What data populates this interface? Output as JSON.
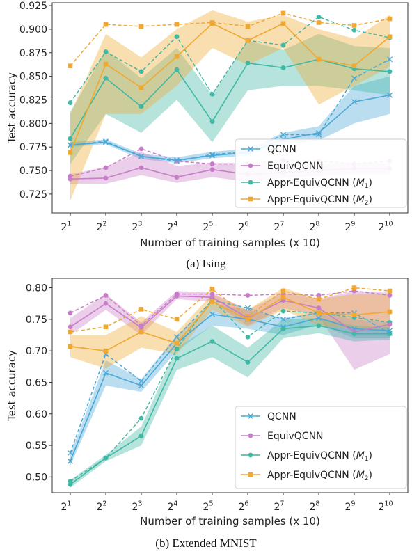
{
  "chart_data": [
    {
      "type": "line",
      "caption": "(a) Ising",
      "xlabel": "Number of training samples (x 10)",
      "ylabel": "Test accuracy",
      "x_ticks": [
        "2^1",
        "2^2",
        "2^3",
        "2^4",
        "2^5",
        "2^6",
        "2^7",
        "2^8",
        "2^9",
        "2^10"
      ],
      "y_ticks": [
        0.725,
        0.75,
        0.775,
        0.8,
        0.825,
        0.85,
        0.875,
        0.9,
        0.925
      ],
      "y_tick_labels": [
        "0.725",
        "0.750",
        "0.775",
        "0.800",
        "0.825",
        "0.850",
        "0.875",
        "0.900",
        "0.925"
      ],
      "ylim": [
        0.705,
        0.928
      ],
      "legend_position": "lower-right",
      "series": [
        {
          "name": "QCNN",
          "color": "#4aa8d8",
          "marker": "x",
          "mean": [
            0.777,
            0.78,
            0.765,
            0.761,
            0.766,
            0.769,
            0.783,
            0.79,
            0.823,
            0.83
          ],
          "best": [
            0.777,
            0.781,
            0.765,
            0.76,
            0.767,
            0.77,
            0.788,
            0.788,
            0.848,
            0.868
          ],
          "lower": [
            0.775,
            0.778,
            0.762,
            0.758,
            0.763,
            0.766,
            0.778,
            0.782,
            0.8,
            0.81
          ],
          "upper": [
            0.78,
            0.783,
            0.768,
            0.764,
            0.77,
            0.773,
            0.79,
            0.797,
            0.84,
            0.85
          ]
        },
        {
          "name": "EquivQCNN",
          "color": "#c87dc8",
          "marker": "o",
          "mean": [
            0.741,
            0.742,
            0.753,
            0.743,
            0.751,
            0.746,
            0.748,
            0.75,
            0.752,
            0.752
          ],
          "best": [
            0.744,
            0.753,
            0.773,
            0.76,
            0.757,
            0.757,
            0.761,
            0.76,
            0.757,
            0.76
          ],
          "lower": [
            0.736,
            0.736,
            0.745,
            0.737,
            0.743,
            0.738,
            0.742,
            0.744,
            0.746,
            0.746
          ],
          "upper": [
            0.746,
            0.754,
            0.77,
            0.755,
            0.758,
            0.758,
            0.758,
            0.757,
            0.758,
            0.758
          ]
        },
        {
          "name": "Appr-EquivQCNN (M1)",
          "color": "#3fb8a4",
          "marker": "o",
          "mean": [
            0.784,
            0.848,
            0.818,
            0.857,
            0.802,
            0.864,
            0.859,
            0.868,
            0.858,
            0.855
          ],
          "best": [
            0.822,
            0.876,
            0.855,
            0.892,
            0.831,
            0.888,
            0.883,
            0.913,
            0.899,
            0.891
          ],
          "lower": [
            0.757,
            0.81,
            0.79,
            0.825,
            0.78,
            0.835,
            0.84,
            0.84,
            0.835,
            0.83
          ],
          "upper": [
            0.812,
            0.878,
            0.848,
            0.88,
            0.83,
            0.888,
            0.878,
            0.895,
            0.882,
            0.88
          ]
        },
        {
          "name": "Appr-EquivQCNN (M2)",
          "color": "#f0a830",
          "marker": "s",
          "mean": [
            0.769,
            0.863,
            0.838,
            0.871,
            0.906,
            0.888,
            0.906,
            0.868,
            0.861,
            0.892
          ],
          "best": [
            0.861,
            0.905,
            0.903,
            0.905,
            0.907,
            0.903,
            0.917,
            0.907,
            0.904,
            0.911
          ],
          "lower": [
            0.718,
            0.81,
            0.81,
            0.84,
            0.88,
            0.862,
            0.88,
            0.82,
            0.84,
            0.86
          ],
          "upper": [
            0.81,
            0.895,
            0.87,
            0.9,
            0.92,
            0.908,
            0.915,
            0.9,
            0.89,
            0.915
          ]
        }
      ]
    },
    {
      "type": "line",
      "caption": "(b) Extended MNIST",
      "xlabel": "Number of training samples (x 10)",
      "ylabel": "Test accuracy",
      "x_ticks": [
        "2^1",
        "2^2",
        "2^3",
        "2^4",
        "2^5",
        "2^6",
        "2^7",
        "2^8",
        "2^9",
        "2^10"
      ],
      "y_ticks": [
        0.5,
        0.55,
        0.6,
        0.65,
        0.7,
        0.75,
        0.8
      ],
      "y_tick_labels": [
        "0.50",
        "0.55",
        "0.60",
        "0.65",
        "0.70",
        "0.75",
        "0.80"
      ],
      "ylim": [
        0.475,
        0.815
      ],
      "legend_position": "lower-right",
      "series": [
        {
          "name": "QCNN",
          "color": "#4aa8d8",
          "marker": "x",
          "mean": [
            0.525,
            0.665,
            0.645,
            0.712,
            0.758,
            0.75,
            0.738,
            0.752,
            0.735,
            0.732
          ],
          "best": [
            0.538,
            0.695,
            0.652,
            0.722,
            0.78,
            0.768,
            0.75,
            0.76,
            0.76,
            0.728
          ],
          "lower": [
            0.518,
            0.645,
            0.635,
            0.7,
            0.74,
            0.735,
            0.725,
            0.742,
            0.72,
            0.72
          ],
          "upper": [
            0.535,
            0.685,
            0.655,
            0.725,
            0.775,
            0.765,
            0.752,
            0.762,
            0.75,
            0.745
          ]
        },
        {
          "name": "EquivQCNN",
          "color": "#c87dc8",
          "marker": "o",
          "mean": [
            0.738,
            0.775,
            0.737,
            0.787,
            0.785,
            0.752,
            0.78,
            0.768,
            0.73,
            0.742
          ],
          "best": [
            0.76,
            0.788,
            0.74,
            0.79,
            0.79,
            0.788,
            0.79,
            0.788,
            0.795,
            0.788
          ],
          "lower": [
            0.725,
            0.765,
            0.725,
            0.782,
            0.778,
            0.74,
            0.768,
            0.755,
            0.67,
            0.695
          ],
          "upper": [
            0.752,
            0.79,
            0.745,
            0.795,
            0.792,
            0.765,
            0.792,
            0.782,
            0.795,
            0.792
          ]
        },
        {
          "name": "Appr-EquivQCNN (M1)",
          "color": "#3fb8a4",
          "marker": "o",
          "mean": [
            0.488,
            0.53,
            0.565,
            0.688,
            0.715,
            0.682,
            0.735,
            0.74,
            0.727,
            0.727
          ],
          "best": [
            0.493,
            0.53,
            0.593,
            0.703,
            0.782,
            0.722,
            0.763,
            0.76,
            0.753,
            0.745
          ],
          "lower": [
            0.483,
            0.525,
            0.55,
            0.67,
            0.69,
            0.658,
            0.72,
            0.728,
            0.715,
            0.718
          ],
          "upper": [
            0.495,
            0.535,
            0.58,
            0.705,
            0.74,
            0.705,
            0.75,
            0.752,
            0.74,
            0.738
          ]
        },
        {
          "name": "Appr-EquivQCNN (M2)",
          "color": "#f0a830",
          "marker": "s",
          "mean": [
            0.707,
            0.7,
            0.73,
            0.712,
            0.778,
            0.75,
            0.785,
            0.76,
            0.757,
            0.762
          ],
          "best": [
            0.73,
            0.738,
            0.766,
            0.75,
            0.798,
            0.755,
            0.795,
            0.782,
            0.8,
            0.795
          ],
          "lower": [
            0.69,
            0.672,
            0.705,
            0.695,
            0.765,
            0.738,
            0.765,
            0.74,
            0.735,
            0.735
          ],
          "upper": [
            0.725,
            0.725,
            0.755,
            0.73,
            0.79,
            0.765,
            0.8,
            0.782,
            0.79,
            0.79
          ]
        }
      ]
    }
  ]
}
